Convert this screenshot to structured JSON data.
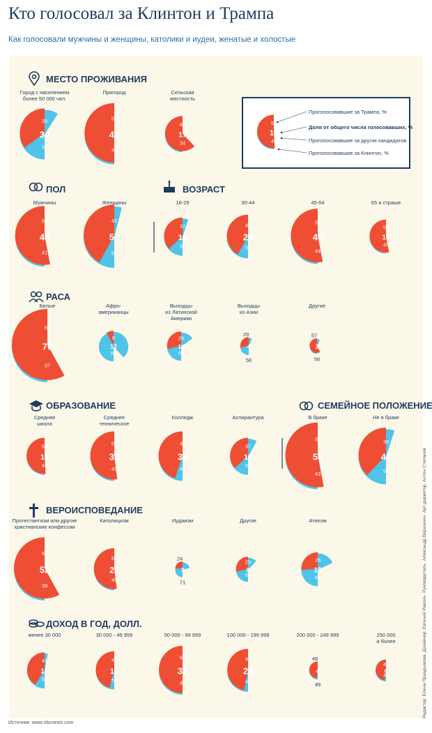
{
  "header": {
    "title": "Кто голосовал за Клинтон и Трампа",
    "subtitle": "Как голосовали мужчины и женщины, католики и иудеи, женатые и холостые"
  },
  "footer": {
    "source": "Источник: www.nbcnews.com",
    "credits": "Редактор: Елена Праздникова. Дизайнер: Евгений Рамзин. Руководитель: Александр Вершинин. Арт-директор: Антон Степанов"
  },
  "colors": {
    "trump": "#ee4e34",
    "clinton": "#4fc3e8",
    "other": "#fbf8e9",
    "text": "#1f3a5f",
    "panel": "#fbf8e9"
  },
  "legend": {
    "example": {
      "trump": "51",
      "share": "18",
      "clinton": "45"
    },
    "items": [
      {
        "text": "Проголосовавшие за Трампа, %",
        "bold": false
      },
      {
        "text": "Доля от общего числа голосовавших, %",
        "bold": true
      },
      {
        "text": "Проголосовавшие за других кандидатов",
        "bold": false
      },
      {
        "text": "Проголосовавшие за Клинтон, %",
        "bold": false
      }
    ]
  },
  "chart_data": {
    "type": "pie",
    "sections": [
      {
        "id": "residence",
        "title": "МЕСТО ПРОЖИВАНИЯ",
        "icon": "location-pin-icon",
        "groups": [
          {
            "label": [
              "Город с населением",
              "более 50 000 чел."
            ],
            "share": 34,
            "trump": 35,
            "clinton": 59
          },
          {
            "label": [
              "Пригород"
            ],
            "share": 49,
            "trump": 50,
            "clinton": 45
          },
          {
            "label": [
              "Сельская",
              "местность"
            ],
            "share": 17,
            "trump": 62,
            "clinton": 34
          }
        ]
      },
      {
        "id": "gender",
        "title": "ПОЛ",
        "icon": "rings-icon",
        "groups": [
          {
            "label": [
              "Мужчины"
            ],
            "share": 48,
            "trump": 53,
            "clinton": 41
          },
          {
            "label": [
              "Женщины"
            ],
            "share": 52,
            "trump": 42,
            "clinton": 54
          }
        ]
      },
      {
        "id": "age",
        "title": "ВОЗРАСТ",
        "icon": "cake-icon",
        "groups": [
          {
            "label": [
              "18-29"
            ],
            "share": 19,
            "trump": 37,
            "clinton": 55
          },
          {
            "label": [
              "30-44"
            ],
            "share": 25,
            "trump": 42,
            "clinton": 50
          },
          {
            "label": [
              "45-64"
            ],
            "share": 40,
            "trump": 53,
            "clinton": 44
          },
          {
            "label": [
              "65 и страше"
            ],
            "share": 15,
            "trump": 53,
            "clinton": 45
          }
        ]
      },
      {
        "id": "race",
        "title": "РАСА",
        "icon": "people-icon",
        "groups": [
          {
            "label": [
              "Белые"
            ],
            "share": 70,
            "trump": 58,
            "clinton": 37
          },
          {
            "label": [
              "Афро-",
              "американцы"
            ],
            "share": 12,
            "trump": 8,
            "clinton": 88
          },
          {
            "label": [
              "Выходцы",
              "из Латинской",
              "Америки"
            ],
            "share": 11,
            "trump": 29,
            "clinton": 65
          },
          {
            "label": [
              "Выходцы",
              "из Азии"
            ],
            "share": 4,
            "trump": 29,
            "clinton": 56
          },
          {
            "label": [
              "Другие"
            ],
            "share": 3,
            "trump": 57,
            "clinton": 56
          }
        ]
      },
      {
        "id": "education",
        "title": "ОБРАЗОВАНИЕ",
        "icon": "graduation-cap-icon",
        "groups": [
          {
            "label": [
              "Средняя",
              "школа"
            ],
            "share": 18,
            "trump": 51,
            "clinton": 45
          },
          {
            "label": [
              "Среднее",
              "техническое"
            ],
            "share": 32,
            "trump": 52,
            "clinton": 43
          },
          {
            "label": [
              "Колледж"
            ],
            "share": 32,
            "trump": 45,
            "clinton": 49
          },
          {
            "label": [
              "Аспирантура"
            ],
            "share": 18,
            "trump": 37,
            "clinton": 58
          }
        ]
      },
      {
        "id": "marital",
        "title": "СЕМЕЙНОЕ ПОЛОЖЕНИЕ",
        "icon": "rings-icon",
        "groups": [
          {
            "label": [
              "В браке"
            ],
            "share": 58,
            "trump": 53,
            "clinton": 43
          },
          {
            "label": [
              "Не в браке"
            ],
            "share": 42,
            "trump": 38,
            "clinton": 55
          }
        ]
      },
      {
        "id": "religion",
        "title": "ВЕРОИСПОВЕДАНИЕ",
        "icon": "cross-icon",
        "groups": [
          {
            "label": [
              "Протестантизм или другие",
              "христианские конфессии"
            ],
            "share": 52,
            "trump": 58,
            "clinton": 39
          },
          {
            "label": [
              "Католицизм"
            ],
            "share": 23,
            "trump": 52,
            "clinton": 45
          },
          {
            "label": [
              "Иудаизм"
            ],
            "share": 3,
            "trump": 24,
            "clinton": 71
          },
          {
            "label": [
              "Другое"
            ],
            "share": 8,
            "trump": 29,
            "clinton": 62
          },
          {
            "label": [
              "Атеизм"
            ],
            "share": 15,
            "trump": 26,
            "clinton": 68
          }
        ]
      },
      {
        "id": "income",
        "title": "ДОХОД В ГОД, ДОЛЛ.",
        "icon": "coins-icon",
        "groups": [
          {
            "label": [
              "менее 30 000"
            ],
            "share": 17,
            "trump": 41,
            "clinton": 53
          },
          {
            "label": [
              "30 000 - 49 999"
            ],
            "share": 19,
            "trump": 46,
            "clinton": 50
          },
          {
            "label": [
              "50 000 - 99 999"
            ],
            "share": 31,
            "trump": 50,
            "clinton": 46
          },
          {
            "label": [
              "100 000 - 199 999"
            ],
            "share": 24,
            "trump": 47,
            "clinton": 48
          },
          {
            "label": [
              "200 000 - 249 999"
            ],
            "share": 4,
            "trump": 48,
            "clinton": 49
          },
          {
            "label": [
              "250 000",
              "и более"
            ],
            "share": 6,
            "trump": 48,
            "clinton": 46
          }
        ]
      }
    ]
  }
}
